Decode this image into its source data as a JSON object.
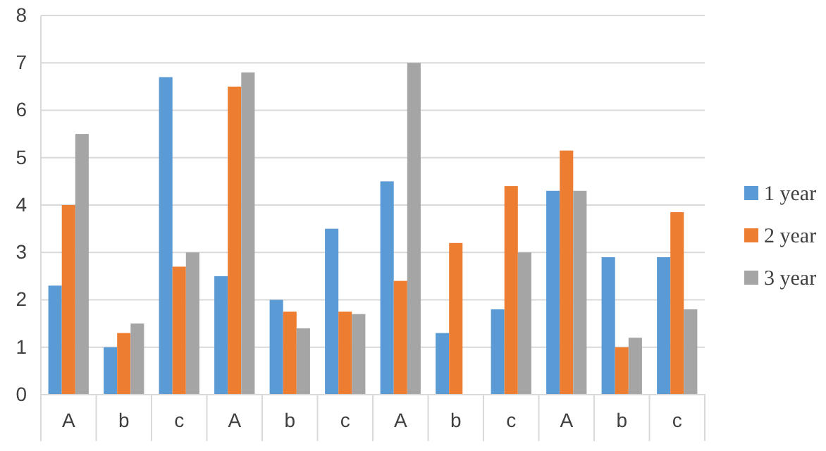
{
  "chart_data": {
    "type": "bar",
    "categories": [
      "A",
      "b",
      "c",
      "A",
      "b",
      "c",
      "A",
      "b",
      "c",
      "A",
      "b",
      "c"
    ],
    "series": [
      {
        "name": "1 year",
        "color": "#5b9bd5",
        "values": [
          2.3,
          1,
          6.7,
          2.5,
          2,
          3.5,
          4.5,
          1.3,
          1.8,
          4.3,
          2.9,
          2.9
        ]
      },
      {
        "name": "2 year",
        "color": "#ed7d31",
        "values": [
          4,
          1.3,
          2.7,
          6.5,
          1.75,
          1.75,
          2.4,
          3.2,
          4.4,
          5.15,
          1,
          3.85
        ]
      },
      {
        "name": "3 year",
        "color": "#a5a5a5",
        "values": [
          5.5,
          1.5,
          3,
          6.8,
          1.4,
          1.7,
          7,
          null,
          3,
          4.3,
          1.2,
          1.8
        ]
      }
    ],
    "ylim": [
      0,
      8
    ],
    "yticks": [
      0,
      1,
      2,
      3,
      4,
      5,
      6,
      7,
      8
    ],
    "grid": "y",
    "legend": "right"
  }
}
